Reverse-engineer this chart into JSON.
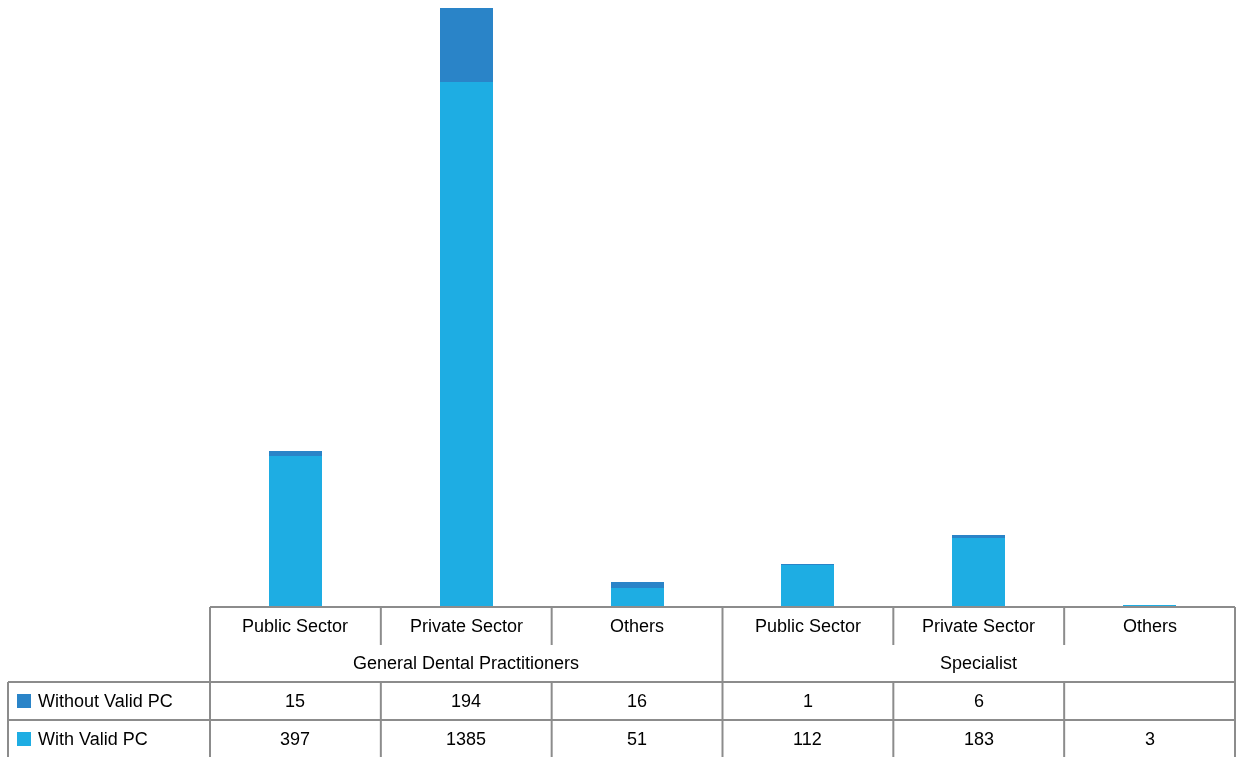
{
  "chart_data": {
    "type": "bar",
    "stacked": true,
    "legend": "bottom left",
    "data_labels": true,
    "categories": [
      "Public Sector",
      "Private Sector",
      "Others",
      "Public Sector",
      "Private Sector",
      "Others"
    ],
    "annotations": [
      "General Dental Practitioners",
      "Specialist"
    ],
    "series": [
      {
        "name": "With Valid PC",
        "color": "#1eade3",
        "values": [
          397,
          1385,
          51,
          112,
          183,
          3
        ]
      },
      {
        "name": "Without Valid PC",
        "color": "#2a84c8",
        "values": [
          15,
          194,
          16,
          1,
          6,
          null
        ]
      }
    ]
  }
}
